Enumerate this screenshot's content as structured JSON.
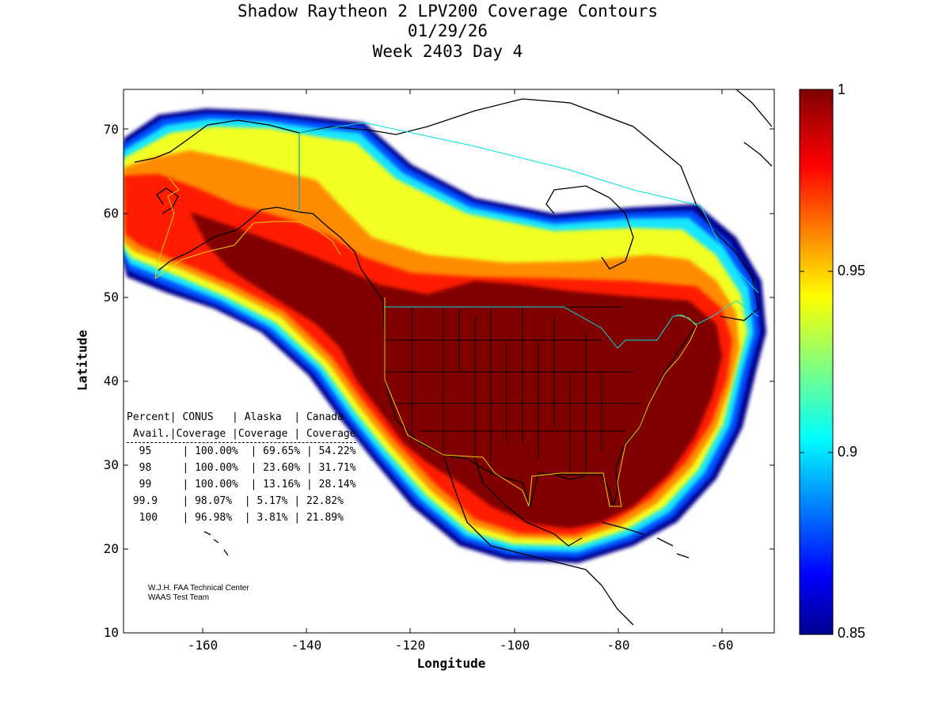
{
  "title": {
    "line1": "Shadow Raytheon 2 LPV200 Coverage Contours",
    "line2": "01/29/26",
    "line3": "Week 2403 Day 4"
  },
  "axes": {
    "xlabel": "Longitude",
    "ylabel": "Latitude",
    "xticks": [
      "-160",
      "-140",
      "-120",
      "-100",
      "-80",
      "-60"
    ],
    "yticks": [
      "70",
      "60",
      "50",
      "40",
      "30",
      "20",
      "10"
    ],
    "xlim": [
      -175,
      -50
    ],
    "ylim": [
      10,
      75
    ]
  },
  "colorbar": {
    "ticks": [
      "1",
      "0.95",
      "0.9",
      "0.85"
    ],
    "range": [
      0.85,
      1
    ],
    "colormap": "jet"
  },
  "table": {
    "header1": [
      "Percent",
      "CONUS",
      "Alaska",
      "Canada"
    ],
    "header2": [
      "Avail.",
      "Coverage",
      "Coverage",
      "Coverage"
    ],
    "rows": [
      [
        "95",
        "100.00%",
        "69.65%",
        "54.22%"
      ],
      [
        "98",
        "100.00%",
        "23.60%",
        "31.71%"
      ],
      [
        "99",
        "100.00%",
        "13.16%",
        "28.14%"
      ],
      [
        "99.9",
        "98.07%",
        "5.17%",
        "22.82%"
      ],
      [
        "100",
        "96.98%",
        "3.81%",
        "21.89%"
      ]
    ]
  },
  "credit": {
    "line1": "W.J.H. FAA Technical Center",
    "line2": "WAAS Test Team"
  },
  "colors": {
    "dark_red": "#800000",
    "red": "#ff1a00",
    "orange": "#ff8c00",
    "yellow": "#f2ff20",
    "cyan": "#19e6ff",
    "blue": "#0040ff",
    "navy": "#00008f",
    "coast": "#000000",
    "service_volume": "#e8d000",
    "border_cyan": "#00e0e0"
  }
}
